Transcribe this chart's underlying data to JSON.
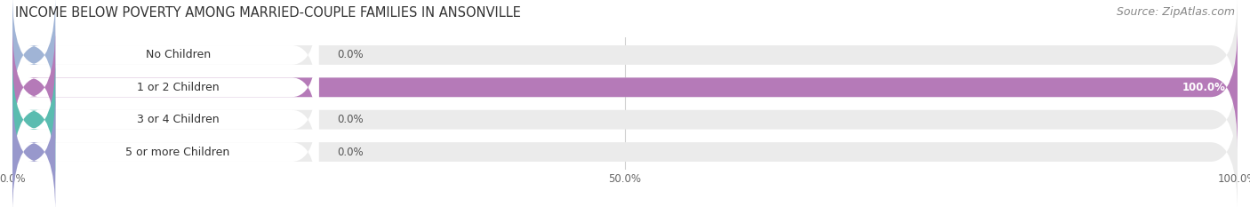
{
  "title": "INCOME BELOW POVERTY AMONG MARRIED-COUPLE FAMILIES IN ANSONVILLE",
  "source": "Source: ZipAtlas.com",
  "categories": [
    "No Children",
    "1 or 2 Children",
    "3 or 4 Children",
    "5 or more Children"
  ],
  "values": [
    0.0,
    100.0,
    0.0,
    0.0
  ],
  "bar_colors": [
    "#a0b4d6",
    "#b57ab8",
    "#5abcb0",
    "#9898cc"
  ],
  "bar_bg_color": "#ebebeb",
  "xlim": [
    0,
    100
  ],
  "xticks": [
    0.0,
    50.0,
    100.0
  ],
  "xtick_labels": [
    "0.0%",
    "50.0%",
    "100.0%"
  ],
  "title_fontsize": 10.5,
  "source_fontsize": 9,
  "label_fontsize": 9,
  "value_fontsize": 8.5,
  "tick_fontsize": 8.5,
  "background_color": "#ffffff",
  "bar_height": 0.6,
  "grid_color": "#d0d0d0"
}
